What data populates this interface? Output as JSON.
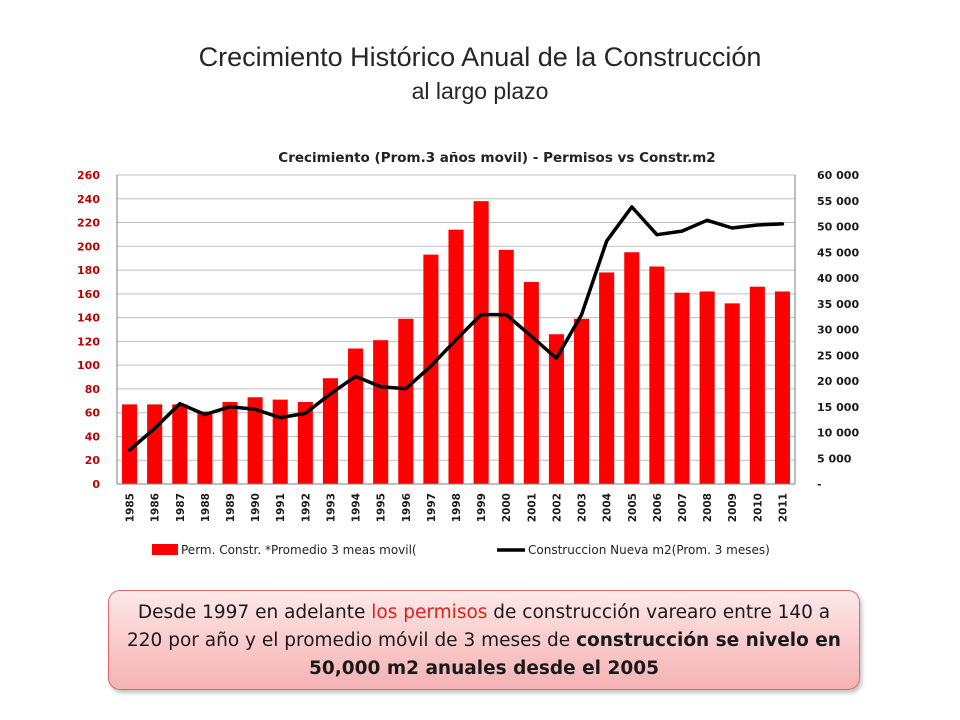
{
  "slide": {
    "title": "Crecimiento Histórico Anual de la Construcción",
    "subtitle": "al largo plazo"
  },
  "chart_data": {
    "type": "bar",
    "title": "Crecimiento (Prom.3 años movil) - Permisos vs Constr.m2",
    "categories": [
      "1985",
      "1986",
      "1987",
      "1988",
      "1989",
      "1990",
      "1991",
      "1992",
      "1993",
      "1994",
      "1995",
      "1996",
      "1997",
      "1998",
      "1999",
      "2000",
      "2001",
      "2002",
      "2003",
      "2004",
      "2005",
      "2006",
      "2007",
      "2008",
      "2009",
      "2010",
      "2011"
    ],
    "series": [
      {
        "name": "Perm. Constr. *Promedio 3 meas movil(",
        "type": "bar",
        "axis": "left",
        "color": "#ff0000",
        "values": [
          67,
          67,
          67,
          61,
          69,
          73,
          71,
          69,
          89,
          114,
          121,
          139,
          193,
          214,
          238,
          197,
          170,
          126,
          139,
          178,
          195,
          183,
          161,
          162,
          152,
          166,
          162
        ]
      },
      {
        "name": "Construccion Nueva m2(Prom. 3 meses)",
        "type": "line",
        "axis": "right",
        "color": "#000000",
        "values": [
          6600,
          10800,
          15600,
          13500,
          15000,
          14500,
          12900,
          13700,
          17500,
          20900,
          18900,
          18500,
          22900,
          28000,
          32900,
          32900,
          28700,
          24400,
          32900,
          47200,
          53800,
          48400,
          49100,
          51200,
          49700,
          50300,
          50500
        ]
      }
    ],
    "y_left": {
      "lim": [
        0,
        260
      ],
      "ticks": [
        "0",
        "20",
        "40",
        "60",
        "80",
        "100",
        "120",
        "140",
        "160",
        "180",
        "200",
        "220",
        "240",
        "260"
      ],
      "color": "#c00000"
    },
    "y_right": {
      "lim": [
        0,
        60000
      ],
      "ticks": [
        "-",
        "5 000",
        "10 000",
        "15 000",
        "20 000",
        "25 000",
        "30 000",
        "35 000",
        "40 000",
        "45 000",
        "50 000",
        "55 000",
        "60 000"
      ],
      "color": "#1a1a1a"
    },
    "grid": true,
    "legend_position": "bottom"
  },
  "note": {
    "part1": "Desde 1997 en adelante ",
    "part2_red": "los permisos",
    "part3": " de construcción varearo entre 140 a 220 por año y el promedio móvil de 3 meses de ",
    "part4_bold": "construcción se nivelo en 50,000 m2 anuales desde el 2005"
  }
}
